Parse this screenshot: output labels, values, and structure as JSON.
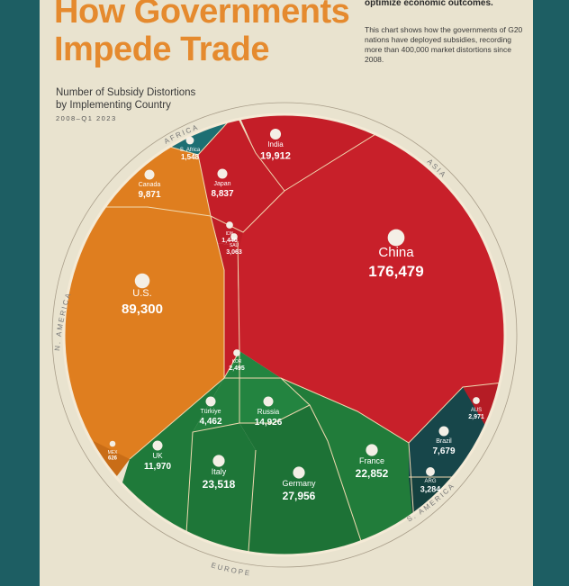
{
  "title_lines": [
    "How Governments",
    "Impede Trade"
  ],
  "intro_bold": "optimize economic outcomes.",
  "intro_text": "This chart shows how the governments of G20 nations have deployed subsidies, recording more than 400,000 market distortions since 2008.",
  "subtitle_lines": [
    "Number of Subsidy Distortions",
    "by Implementing Country"
  ],
  "date_range": "2008–Q1 2023",
  "colors": {
    "frame": "#1d5e63",
    "paper": "#e9e3cf",
    "title": "#e58a2e",
    "asia": "#c8202a",
    "america_n": "#df7e1f",
    "europe": "#1f7a3a",
    "america_s": "#17464a",
    "africa": "#1d6f73"
  },
  "chart_data": {
    "type": "voronoi-treemap",
    "title": "Number of Subsidy Distortions by Implementing Country",
    "regions": [
      "AFRICA",
      "ASIA",
      "S. AMERICA",
      "EUROPE",
      "N. AMERICA"
    ],
    "items": [
      {
        "name": "China",
        "value": 176479,
        "value_label": "176,479",
        "region": "ASIA"
      },
      {
        "name": "U.S.",
        "value": 89300,
        "value_label": "89,300",
        "region": "N. AMERICA"
      },
      {
        "name": "Germany",
        "value": 27956,
        "value_label": "27,956",
        "region": "EUROPE"
      },
      {
        "name": "Italy",
        "value": 23518,
        "value_label": "23,518",
        "region": "EUROPE"
      },
      {
        "name": "France",
        "value": 22852,
        "value_label": "22,852",
        "region": "EUROPE"
      },
      {
        "name": "India",
        "value": 19912,
        "value_label": "19,912",
        "region": "ASIA"
      },
      {
        "name": "Russia",
        "value": 14926,
        "value_label": "14,926",
        "region": "EUROPE"
      },
      {
        "name": "UK",
        "value": 11970,
        "value_label": "11,970",
        "region": "EUROPE"
      },
      {
        "name": "Canada",
        "value": 9871,
        "value_label": "9,871",
        "region": "N. AMERICA"
      },
      {
        "name": "Japan",
        "value": 8837,
        "value_label": "8,837",
        "region": "ASIA"
      },
      {
        "name": "Brazil",
        "value": 7679,
        "value_label": "7,679",
        "region": "S. AMERICA"
      },
      {
        "name": "Türkiye",
        "value": 4462,
        "value_label": "4,462",
        "region": "EUROPE"
      },
      {
        "name": "ARG",
        "value": 3284,
        "value_label": "3,284",
        "region": "S. AMERICA"
      },
      {
        "name": "SAU",
        "value": 3063,
        "value_label": "3,063",
        "region": "ASIA"
      },
      {
        "name": "AUS",
        "value": 2971,
        "value_label": "2,971",
        "region": "ASIA"
      },
      {
        "name": "KOR",
        "value": 2495,
        "value_label": "2,495",
        "region": "ASIA"
      },
      {
        "name": "S. Africa",
        "value": 1548,
        "value_label": "1,548",
        "region": "AFRICA"
      },
      {
        "name": "IDN",
        "value": 1440,
        "value_label": "1,440",
        "region": "ASIA"
      },
      {
        "name": "MEX",
        "value": 626,
        "value_label": "626",
        "region": "N. AMERICA"
      }
    ]
  }
}
